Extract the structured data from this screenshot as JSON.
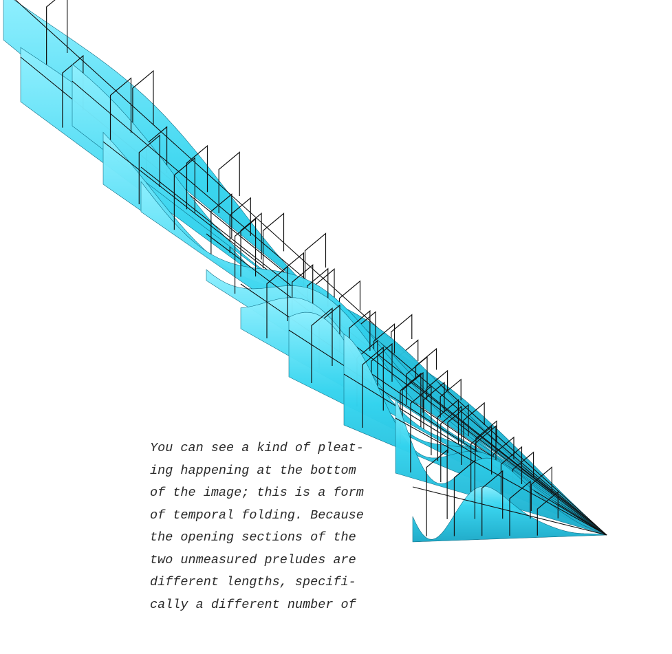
{
  "caption": {
    "lines": [
      "You can see a kind of pleat-",
      "ing happening at the bottom",
      "of the image; this is a form",
      "of temporal folding. Because",
      "the opening sections of the",
      "two unmeasured preludes are",
      "different lengths, specifi-",
      "cally a different number of"
    ]
  }
}
